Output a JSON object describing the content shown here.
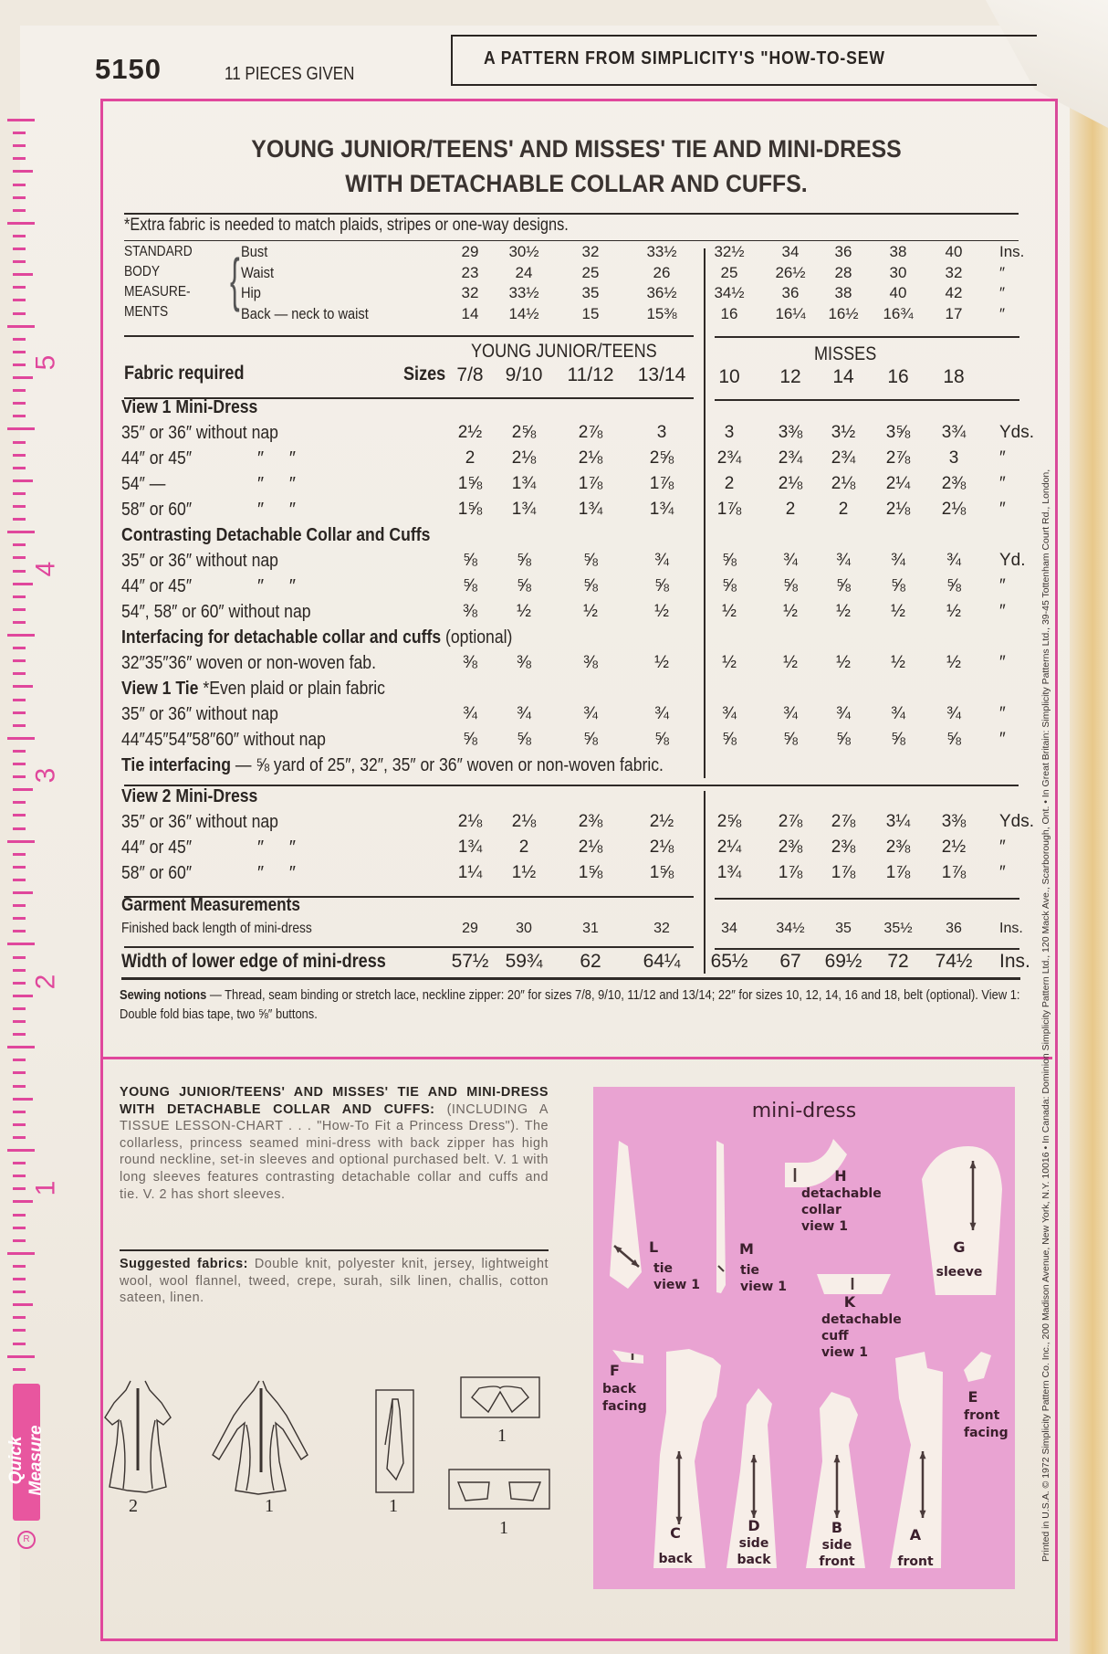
{
  "header": {
    "pattern_number": "5150",
    "pieces_given": "11 PIECES GIVEN",
    "banner": "A PATTERN FROM SIMPLICITY'S \"HOW-TO-SEW"
  },
  "title": {
    "line1": "YOUNG JUNIOR/TEENS' AND MISSES' TIE AND MINI-DRESS",
    "line2": "WITH DETACHABLE COLLAR AND CUFFS."
  },
  "extra_fabric_note": "*Extra fabric is needed to match plaids, stripes or one-way designs.",
  "body_measurements": {
    "labels": [
      "STANDARD",
      "BODY",
      "MEASURE-",
      "MENTS"
    ],
    "rows": [
      {
        "name": "Bust",
        "young": [
          "29",
          "30½",
          "32",
          "33½"
        ],
        "misses": [
          "32½",
          "34",
          "36",
          "38",
          "40"
        ],
        "unit": "Ins."
      },
      {
        "name": "Waist",
        "young": [
          "23",
          "24",
          "25",
          "26"
        ],
        "misses": [
          "25",
          "26½",
          "28",
          "30",
          "32"
        ],
        "unit": "″"
      },
      {
        "name": "Hip",
        "young": [
          "32",
          "33½",
          "35",
          "36½"
        ],
        "misses": [
          "34½",
          "36",
          "38",
          "40",
          "42"
        ],
        "unit": "″"
      },
      {
        "name": "Back — neck to waist",
        "young": [
          "14",
          "14½",
          "15",
          "15⅜"
        ],
        "misses": [
          "16",
          "16¼",
          "16½",
          "16¾",
          "17"
        ],
        "unit": "″"
      }
    ]
  },
  "fabric": {
    "label": "Fabric required",
    "sizes_label": "Sizes",
    "young_heading": "YOUNG JUNIOR/TEENS",
    "misses_heading": "MISSES",
    "young_sizes": [
      "7/8",
      "9/10",
      "11/12",
      "13/14"
    ],
    "misses_sizes": [
      "10",
      "12",
      "14",
      "16",
      "18"
    ],
    "rows": [
      {
        "type": "section",
        "label": "View 1   Mini-Dress"
      },
      {
        "type": "data",
        "label": "35″ or 36″ without nap",
        "young": [
          "2½",
          "2⅝",
          "2⅞",
          "3"
        ],
        "misses": [
          "3",
          "3⅜",
          "3½",
          "3⅝",
          "3¾"
        ],
        "unit": "Yds."
      },
      {
        "type": "data",
        "label": "44″ or 45″",
        "ditto": "″     ″",
        "young": [
          "2",
          "2⅛",
          "2⅛",
          "2⅝"
        ],
        "misses": [
          "2¾",
          "2¾",
          "2¾",
          "2⅞",
          "3"
        ],
        "unit": "″"
      },
      {
        "type": "data",
        "label": "54″   —",
        "ditto": "″     ″",
        "young": [
          "1⅝",
          "1¾",
          "1⅞",
          "1⅞"
        ],
        "misses": [
          "2",
          "2⅛",
          "2⅛",
          "2¼",
          "2⅜"
        ],
        "unit": "″"
      },
      {
        "type": "data",
        "label": "58″ or 60″",
        "ditto": "″     ″",
        "young": [
          "1⅝",
          "1¾",
          "1¾",
          "1¾"
        ],
        "misses": [
          "1⅞",
          "2",
          "2",
          "2⅛",
          "2⅛"
        ],
        "unit": "″"
      },
      {
        "type": "section",
        "label": "Contrasting Detachable Collar and Cuffs"
      },
      {
        "type": "data",
        "label": "35″ or 36″ without nap",
        "young": [
          "⅝",
          "⅝",
          "⅝",
          "¾"
        ],
        "misses": [
          "⅝",
          "¾",
          "¾",
          "¾",
          "¾"
        ],
        "unit": "Yd."
      },
      {
        "type": "data",
        "label": "44″ or 45″",
        "ditto": "″     ″",
        "young": [
          "⅝",
          "⅝",
          "⅝",
          "⅝"
        ],
        "misses": [
          "⅝",
          "⅝",
          "⅝",
          "⅝",
          "⅝"
        ],
        "unit": "″"
      },
      {
        "type": "data",
        "label": "54″, 58″ or 60″ without nap",
        "young": [
          "⅜",
          "½",
          "½",
          "½"
        ],
        "misses": [
          "½",
          "½",
          "½",
          "½",
          "½"
        ],
        "unit": "″"
      },
      {
        "type": "section",
        "label": "Interfacing for detachable collar and cuffs",
        "suffix": " (optional)"
      },
      {
        "type": "data",
        "label": "32″35″36″ woven or non-woven fab.",
        "young": [
          "⅜",
          "⅜",
          "⅜",
          "½"
        ],
        "misses": [
          "½",
          "½",
          "½",
          "½",
          "½"
        ],
        "unit": "″"
      },
      {
        "type": "section",
        "label": "View 1   Tie",
        "suffix": "   *Even plaid or plain fabric"
      },
      {
        "type": "data",
        "label": "35″ or 36″ without nap",
        "young": [
          "¾",
          "¾",
          "¾",
          "¾"
        ],
        "misses": [
          "¾",
          "¾",
          "¾",
          "¾",
          "¾"
        ],
        "unit": "″"
      },
      {
        "type": "data",
        "label": "44″45″54″58″60″ without nap",
        "young": [
          "⅝",
          "⅝",
          "⅝",
          "⅝"
        ],
        "misses": [
          "⅝",
          "⅝",
          "⅝",
          "⅝",
          "⅝"
        ],
        "unit": "″"
      },
      {
        "type": "section",
        "label": "Tie interfacing",
        "suffix": " — ⅝ yard of 25″, 32″, 35″ or 36″ woven or non-woven fabric."
      },
      {
        "type": "section",
        "label": "View 2   Mini-Dress",
        "gap": true
      },
      {
        "type": "data",
        "label": "35″ or 36″ without nap",
        "young": [
          "2⅛",
          "2⅛",
          "2⅜",
          "2½"
        ],
        "misses": [
          "2⅝",
          "2⅞",
          "2⅞",
          "3¼",
          "3⅜"
        ],
        "unit": "Yds."
      },
      {
        "type": "data",
        "label": "44″ or 45″",
        "ditto": "″     ″",
        "young": [
          "1¾",
          "2",
          "2⅛",
          "2⅛"
        ],
        "misses": [
          "2¼",
          "2⅜",
          "2⅜",
          "2⅜",
          "2½"
        ],
        "unit": "″"
      },
      {
        "type": "data",
        "label": "58″ or 60″",
        "ditto": "″     ″",
        "young": [
          "1¼",
          "1½",
          "1⅝",
          "1⅝"
        ],
        "misses": [
          "1¾",
          "1⅞",
          "1⅞",
          "1⅞",
          "1⅞"
        ],
        "unit": "″"
      }
    ]
  },
  "garment": {
    "heading": "Garment Measurements",
    "back_length": {
      "label": "Finished back length of mini-dress",
      "young": [
        "29",
        "30",
        "31",
        "32"
      ],
      "misses": [
        "34",
        "34½",
        "35",
        "35½",
        "36"
      ],
      "unit": "Ins."
    },
    "lower_edge": {
      "label": "Width of lower edge of mini-dress",
      "young": [
        "57½",
        "59¾",
        "62",
        "64¼"
      ],
      "misses": [
        "65½",
        "67",
        "69½",
        "72",
        "74½"
      ],
      "unit": "Ins."
    }
  },
  "sewing_notions": {
    "label": "Sewing notions",
    "text": " — Thread, seam binding or stretch lace, neckline zipper: 20″ for sizes 7/8, 9/10, 11/12 and 13/14; 22″ for sizes 10, 12, 14, 16 and 18, belt (optional). View 1: Double fold bias tape, two ⅝″ buttons."
  },
  "description": {
    "heading": "YOUNG JUNIOR/TEENS' AND MISSES' TIE AND MINI-DRESS WITH DETACHABLE COLLAR AND CUFFS:",
    "text": " (INCLUDING A TISSUE LESSON-CHART . . . \"How-To Fit a Princess Dress\"). The collarless, princess seamed mini-dress with back zipper has high round neckline, set-in sleeves and optional purchased belt. V. 1 with long sleeves features contrasting detachable collar and cuffs and tie. V. 2 has short sleeves.",
    "fabrics_label": "Suggested fabrics:",
    "fabrics": " Double knit, polyester knit, jersey, lightweight wool, wool flannel, tweed, crepe, surah, silk linen, challis, cotton sateen, linen."
  },
  "views": [
    {
      "label": "2",
      "icon": "short-sleeve-dress-back"
    },
    {
      "label": "1",
      "icon": "long-sleeve-dress-back"
    },
    {
      "label": "1",
      "icon": "tie"
    },
    {
      "label": "1",
      "icon": "collar"
    },
    {
      "label": "1",
      "icon": "cuffs"
    }
  ],
  "pieces_chart": {
    "title": "mini-dress",
    "background": "#e9a3d2",
    "pieces": [
      {
        "letter": "L",
        "lines": [
          "tie",
          "view 1"
        ]
      },
      {
        "letter": "M",
        "lines": [
          "tie",
          "view 1"
        ]
      },
      {
        "letter": "H",
        "lines": [
          "detachable",
          "collar",
          "view 1"
        ]
      },
      {
        "letter": "G",
        "lines": [
          "sleeve"
        ]
      },
      {
        "letter": "K",
        "lines": [
          "detachable",
          "cuff",
          "view 1"
        ]
      },
      {
        "letter": "F",
        "lines": [
          "back",
          "facing"
        ]
      },
      {
        "letter": "E",
        "lines": [
          "front",
          "facing"
        ]
      },
      {
        "letter": "C",
        "lines": [
          "back"
        ]
      },
      {
        "letter": "D",
        "lines": [
          "side",
          "back"
        ]
      },
      {
        "letter": "B",
        "lines": [
          "side",
          "front"
        ]
      },
      {
        "letter": "A",
        "lines": [
          "front"
        ]
      }
    ]
  },
  "ruler": {
    "label": "Quick Measure",
    "numbers": [
      "5",
      "4",
      "3",
      "2",
      "1"
    ],
    "color": "#e0479c"
  },
  "copyright": "Printed in U.S.A.   © 1972 Simplicity Pattern Co. Inc., 200 Madison Avenue, New York, N.Y. 10016 • In Canada: Dominion Simplicity Pattern Ltd., 120 Mack Ave., Scarborough, Ont. • In Great Britain: Simplicity Patterns Ltd., 39-45 Tottenham Court Rd., London,"
}
